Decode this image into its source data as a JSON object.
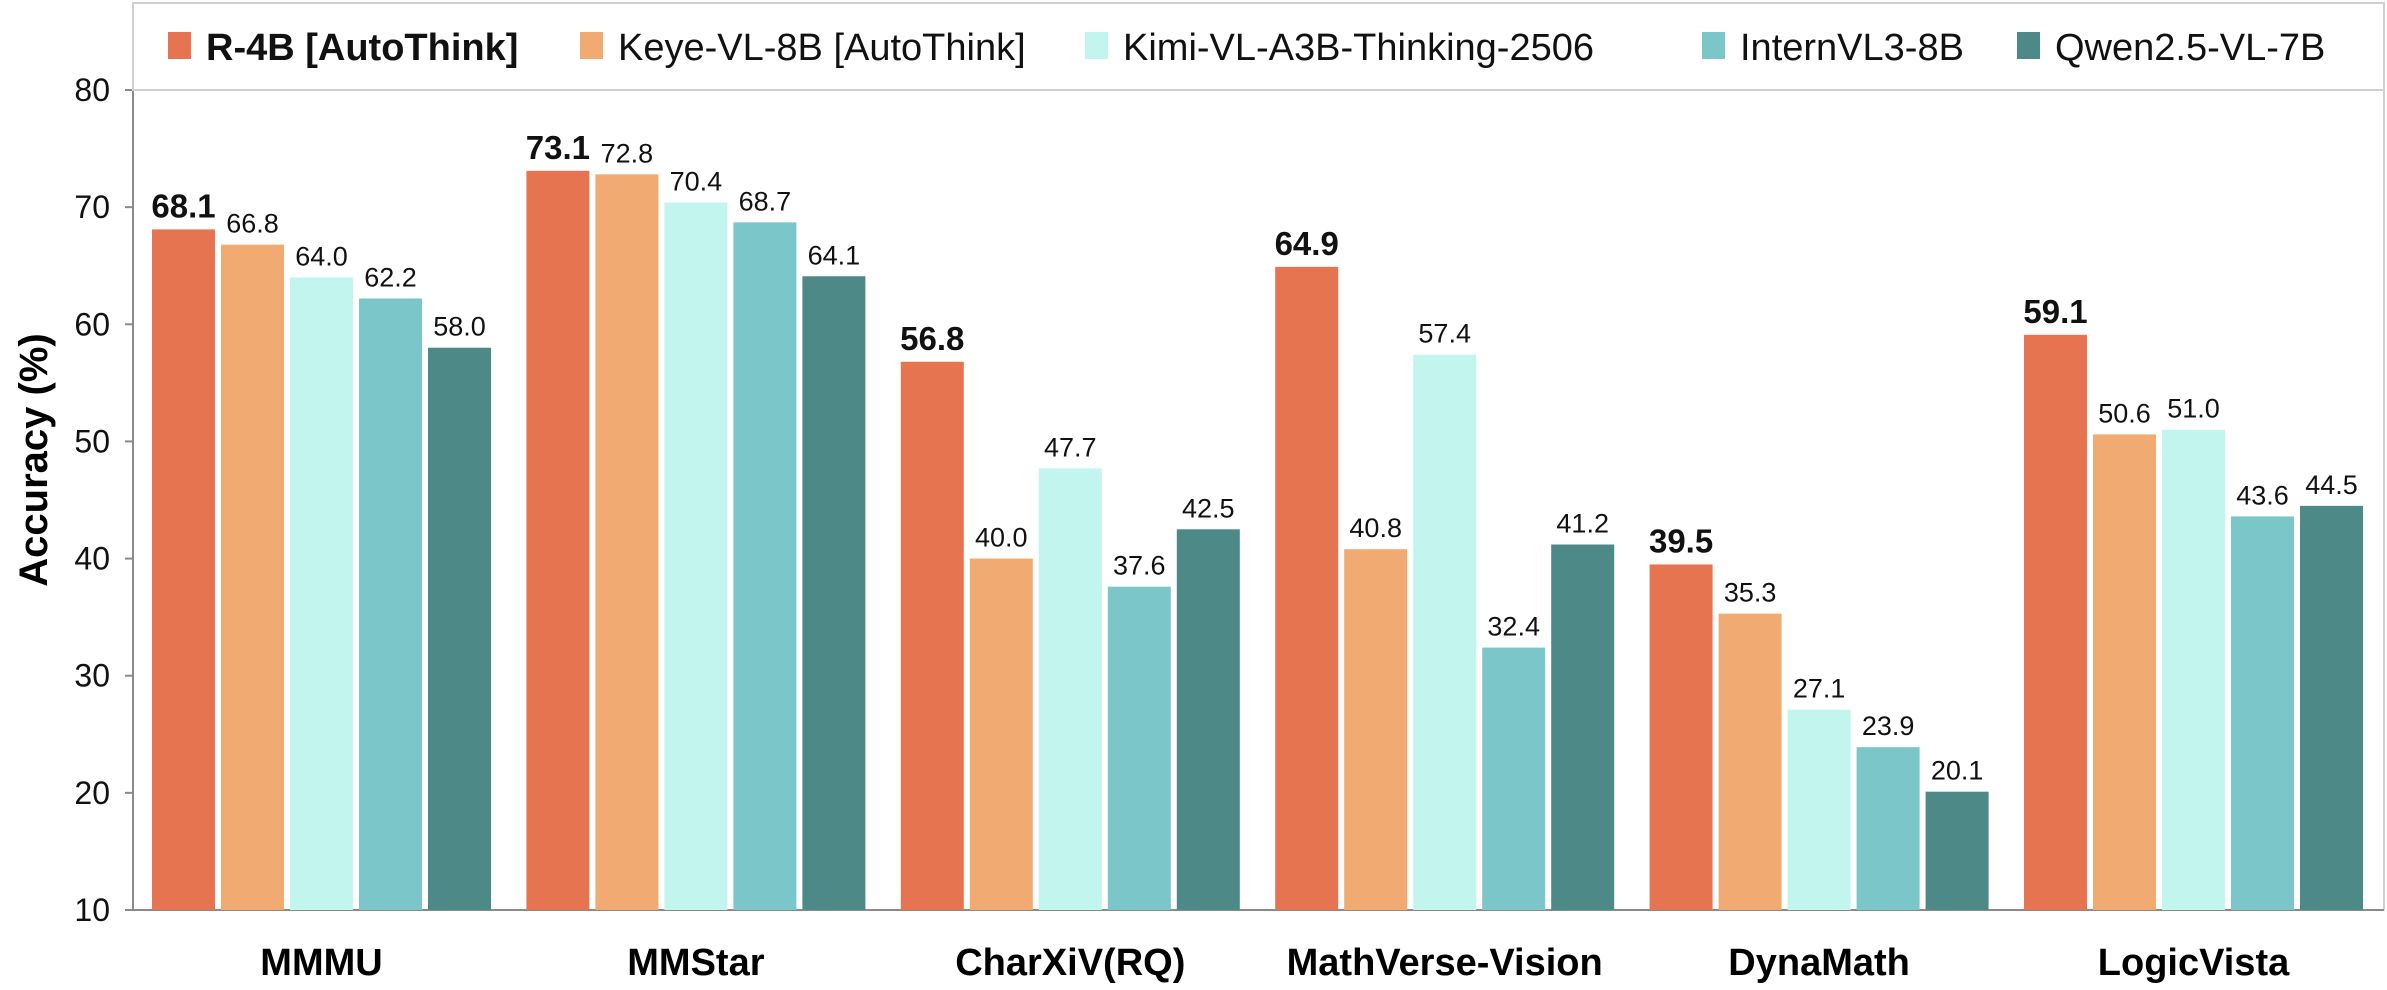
{
  "chart_data": {
    "type": "bar",
    "ylabel": "Accuracy  (%)",
    "ylim": [
      10,
      80
    ],
    "yticks": [
      10,
      20,
      30,
      40,
      50,
      60,
      70,
      80
    ],
    "categories": [
      "MMMU",
      "MMStar",
      "CharXiV(RQ)",
      "MathVerse-Vision",
      "DynaMath",
      "LogicVista"
    ],
    "legend_position": "top",
    "series": [
      {
        "name": "R-4B [AutoThink]",
        "color": "#E67451",
        "highlight": true,
        "values": [
          68.1,
          73.1,
          56.8,
          64.9,
          39.5,
          59.1
        ]
      },
      {
        "name": "Keye-VL-8B [AutoThink]",
        "color": "#F0AA72",
        "highlight": false,
        "values": [
          66.8,
          72.8,
          40.0,
          40.8,
          35.3,
          50.6
        ]
      },
      {
        "name": "Kimi-VL-A3B-Thinking-2506",
        "color": "#C2F5EE",
        "highlight": false,
        "values": [
          64.0,
          70.4,
          47.7,
          57.4,
          27.1,
          51.0
        ]
      },
      {
        "name": "InternVL3-8B",
        "color": "#7BC6C8",
        "highlight": false,
        "values": [
          62.2,
          68.7,
          37.6,
          32.4,
          23.9,
          43.6
        ]
      },
      {
        "name": "Qwen2.5-VL-7B",
        "color": "#4C8987",
        "highlight": false,
        "values": [
          58.0,
          64.1,
          42.5,
          41.2,
          20.1,
          44.5
        ]
      }
    ],
    "highlight_text_color": "#E2542A",
    "grid": false
  }
}
